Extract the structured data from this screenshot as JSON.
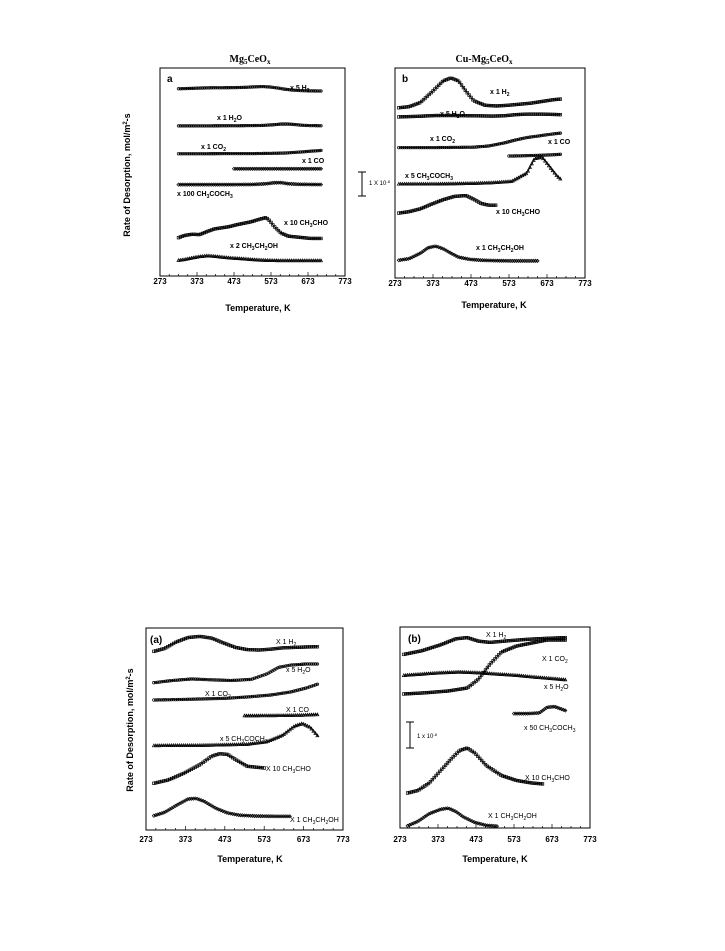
{
  "chart_data": [
    {
      "id": "mg5ceox",
      "type": "line",
      "title": "Mg5CeOx",
      "panel_label": "a",
      "xlabel": "Temperature, K",
      "ylabel": "Rate of Desorption, mol/m²-s",
      "xlim": [
        273,
        773
      ],
      "xticks": [
        "273",
        "373",
        "473",
        "573",
        "673",
        "773"
      ],
      "scale_bar": "1 X 10⁻⁸",
      "series": [
        {
          "name": "x 5 H₂",
          "x": [
            323,
            350,
            380,
            410,
            440,
            470,
            500,
            530,
            550,
            570,
            590,
            610,
            630,
            650,
            680,
            710
          ],
          "y": [
            0.23,
            0.25,
            0.28,
            0.3,
            0.305,
            0.31,
            0.33,
            0.37,
            0.385,
            0.36,
            0.29,
            0.2,
            0.14,
            0.1,
            0.08,
            0.07
          ]
        },
        {
          "name": "x 1 H₂O",
          "x": [
            323,
            373,
            423,
            473,
            523,
            550,
            580,
            600,
            620,
            640,
            660,
            680,
            710
          ],
          "y": [
            0.15,
            0.15,
            0.155,
            0.16,
            0.17,
            0.185,
            0.23,
            0.28,
            0.28,
            0.24,
            0.19,
            0.17,
            0.16
          ]
        },
        {
          "name": "x 1 CO₂",
          "x": [
            323,
            373,
            423,
            473,
            523,
            573,
            610,
            640,
            660,
            680,
            700,
            710
          ],
          "y": [
            0.16,
            0.16,
            0.165,
            0.17,
            0.17,
            0.19,
            0.21,
            0.26,
            0.3,
            0.34,
            0.38,
            0.4
          ]
        },
        {
          "name": "x 1 CO",
          "x": [
            473,
            520,
            570,
            620,
            670,
            710
          ],
          "y": [
            0.12,
            0.12,
            0.12,
            0.12,
            0.12,
            0.12
          ]
        },
        {
          "name": "x 100 CH₃COCH₃",
          "x": [
            323,
            373,
            423,
            473,
            523,
            560,
            580,
            600,
            620,
            650,
            680,
            710
          ],
          "y": [
            0.1,
            0.1,
            0.1,
            0.1,
            0.11,
            0.16,
            0.23,
            0.24,
            0.16,
            0.12,
            0.11,
            0.1
          ]
        },
        {
          "name": "x 10 CH₃CHO",
          "x": [
            323,
            340,
            360,
            380,
            400,
            420,
            440,
            460,
            480,
            500,
            520,
            540,
            560,
            570,
            580,
            600,
            620,
            650,
            680,
            710
          ],
          "y": [
            0.14,
            0.2,
            0.23,
            0.22,
            0.3,
            0.37,
            0.4,
            0.43,
            0.48,
            0.52,
            0.56,
            0.62,
            0.67,
            0.58,
            0.45,
            0.26,
            0.18,
            0.15,
            0.12,
            0.12
          ]
        },
        {
          "name": "x 2 CH₃CH₂OH",
          "x": [
            323,
            340,
            360,
            380,
            400,
            420,
            440,
            460,
            480,
            500,
            520,
            540,
            560,
            600,
            650,
            710
          ],
          "y": [
            0.1,
            0.15,
            0.25,
            0.33,
            0.38,
            0.35,
            0.3,
            0.25,
            0.22,
            0.19,
            0.15,
            0.12,
            0.1,
            0.08,
            0.08,
            0.08
          ]
        }
      ]
    },
    {
      "id": "cu-mg5ceox",
      "type": "line",
      "title": "Cu-Mg5CeOx",
      "panel_label": "b",
      "xlabel": "Temperature, K",
      "ylabel": "",
      "xlim": [
        273,
        773
      ],
      "xticks": [
        "273",
        "373",
        "473",
        "573",
        "673",
        "773"
      ],
      "series": [
        {
          "name": "x 1 H₂",
          "x": [
            283,
            310,
            340,
            370,
            400,
            420,
            440,
            460,
            480,
            510,
            540,
            570,
            600,
            630,
            660,
            690,
            710
          ],
          "y": [
            0.15,
            0.18,
            0.3,
            0.6,
            0.92,
            1.0,
            0.92,
            0.62,
            0.35,
            0.22,
            0.2,
            0.22,
            0.25,
            0.28,
            0.33,
            0.38,
            0.4
          ]
        },
        {
          "name": "x 5 H₂O",
          "x": [
            283,
            330,
            380,
            430,
            480,
            530,
            560,
            590,
            620,
            660,
            710
          ],
          "y": [
            0.22,
            0.26,
            0.32,
            0.32,
            0.3,
            0.28,
            0.3,
            0.38,
            0.42,
            0.42,
            0.38
          ]
        },
        {
          "name": "x 1 CO₂",
          "x": [
            283,
            330,
            380,
            430,
            480,
            520,
            560,
            590,
            620,
            650,
            680,
            710
          ],
          "y": [
            0.12,
            0.12,
            0.12,
            0.13,
            0.14,
            0.2,
            0.35,
            0.5,
            0.62,
            0.7,
            0.78,
            0.85
          ]
        },
        {
          "name": "x 1 CO",
          "x": [
            573,
            600,
            630,
            660,
            690,
            710
          ],
          "y": [
            0.12,
            0.14,
            0.18,
            0.22,
            0.28,
            0.34
          ]
        },
        {
          "name": "x 5 CH₃COCH₃",
          "x": [
            283,
            330,
            380,
            430,
            480,
            530,
            580,
            620,
            640,
            660,
            680,
            700,
            710
          ],
          "y": [
            0.06,
            0.06,
            0.06,
            0.07,
            0.08,
            0.1,
            0.14,
            0.4,
            0.85,
            0.9,
            0.6,
            0.3,
            0.2
          ]
        },
        {
          "name": "x 10 CH₃CHO",
          "x": [
            283,
            310,
            340,
            370,
            400,
            430,
            460,
            480,
            500,
            520,
            540
          ],
          "y": [
            0.12,
            0.18,
            0.3,
            0.5,
            0.68,
            0.82,
            0.85,
            0.7,
            0.52,
            0.45,
            0.45
          ]
        },
        {
          "name": "x 1 CH₃CH₂OH",
          "x": [
            283,
            310,
            340,
            360,
            380,
            400,
            420,
            440,
            470,
            500,
            540,
            580,
            620,
            650
          ],
          "y": [
            0.08,
            0.15,
            0.4,
            0.65,
            0.72,
            0.6,
            0.4,
            0.22,
            0.12,
            0.08,
            0.06,
            0.05,
            0.05,
            0.05
          ]
        }
      ]
    },
    {
      "id": "second-a",
      "type": "line",
      "title": "",
      "panel_label": "(a)",
      "xlabel": "Temperature, K",
      "ylabel": "Rate of Desorption, mol/m²-s",
      "xlim": [
        273,
        773
      ],
      "xticks": [
        "273",
        "373",
        "473",
        "573",
        "673",
        "773"
      ],
      "series": [
        {
          "name": "X 1  H₂",
          "x": [
            293,
            320,
            350,
            380,
            410,
            440,
            470,
            500,
            530,
            560,
            590,
            620,
            650,
            680,
            710
          ],
          "y": [
            0.12,
            0.25,
            0.55,
            0.75,
            0.8,
            0.72,
            0.5,
            0.3,
            0.2,
            0.18,
            0.22,
            0.28,
            0.3,
            0.32,
            0.33
          ]
        },
        {
          "name": "x 5 H₂O",
          "x": [
            293,
            340,
            390,
            440,
            490,
            540,
            580,
            610,
            640,
            680,
            710
          ],
          "y": [
            0.15,
            0.25,
            0.32,
            0.28,
            0.25,
            0.3,
            0.55,
            0.85,
            0.95,
            1.0,
            1.0
          ]
        },
        {
          "name": "X 1 CO₂",
          "x": [
            293,
            350,
            410,
            470,
            530,
            590,
            640,
            680,
            710
          ],
          "y": [
            0.1,
            0.12,
            0.15,
            0.18,
            0.25,
            0.35,
            0.5,
            0.7,
            0.9
          ]
        },
        {
          "name": "X 1 CO",
          "x": [
            523,
            570,
            620,
            670,
            710
          ],
          "y": [
            0.15,
            0.16,
            0.18,
            0.22,
            0.3
          ]
        },
        {
          "name": "x 5 CH₃COCH₃",
          "x": [
            293,
            350,
            410,
            470,
            530,
            580,
            620,
            650,
            670,
            690,
            710
          ],
          "y": [
            0.05,
            0.06,
            0.06,
            0.08,
            0.1,
            0.2,
            0.45,
            0.8,
            0.9,
            0.75,
            0.4
          ]
        },
        {
          "name": "X 10 CH₃CHO",
          "x": [
            293,
            330,
            370,
            410,
            440,
            460,
            480,
            500,
            530,
            573
          ],
          "y": [
            0.05,
            0.15,
            0.35,
            0.6,
            0.85,
            0.92,
            0.9,
            0.75,
            0.55,
            0.5
          ]
        },
        {
          "name": "X 1  CH₃CH₂OH",
          "x": [
            293,
            320,
            350,
            380,
            400,
            420,
            450,
            480,
            510,
            550,
            600,
            640
          ],
          "y": [
            0.08,
            0.2,
            0.45,
            0.68,
            0.7,
            0.6,
            0.35,
            0.18,
            0.1,
            0.07,
            0.06,
            0.06
          ]
        }
      ]
    },
    {
      "id": "second-b",
      "type": "line",
      "title": "",
      "panel_label": "(b)",
      "xlabel": "Temperature, K",
      "ylabel": "",
      "xlim": [
        273,
        773
      ],
      "xticks": [
        "273",
        "373",
        "473",
        "573",
        "673",
        "773"
      ],
      "scale_bar": "1 x 10⁻⁸",
      "series": [
        {
          "name": "X 1  H₂",
          "x": [
            283,
            330,
            380,
            420,
            450,
            480,
            510,
            560,
            610,
            660,
            710
          ],
          "y": [
            0.15,
            0.3,
            0.55,
            0.8,
            0.85,
            0.7,
            0.65,
            0.72,
            0.78,
            0.82,
            0.85
          ]
        },
        {
          "name": "X 1 CO₂",
          "x": [
            283,
            340,
            400,
            450,
            480,
            510,
            540,
            580,
            620,
            660,
            710
          ],
          "y": [
            0.1,
            0.12,
            0.15,
            0.2,
            0.35,
            0.6,
            0.8,
            0.9,
            0.95,
            1.0,
            1.0
          ]
        },
        {
          "name": "x 5 H₂O",
          "x": [
            283,
            330,
            380,
            430,
            480,
            530,
            580,
            630,
            680,
            710
          ],
          "y": [
            0.25,
            0.3,
            0.35,
            0.38,
            0.35,
            0.3,
            0.25,
            0.18,
            0.12,
            0.08
          ]
        },
        {
          "name": "x 50 CH₃COCH₃",
          "x": [
            573,
            610,
            640,
            660,
            680,
            700,
            710
          ],
          "y": [
            0.1,
            0.1,
            0.15,
            0.55,
            0.6,
            0.4,
            0.3
          ]
        },
        {
          "name": "X 10 CH₃CHO",
          "x": [
            293,
            320,
            350,
            380,
            410,
            430,
            450,
            470,
            500,
            540,
            580,
            620,
            650
          ],
          "y": [
            0.1,
            0.15,
            0.3,
            0.55,
            0.8,
            0.95,
            1.0,
            0.9,
            0.65,
            0.45,
            0.35,
            0.3,
            0.28
          ]
        },
        {
          "name": "X 1  CH₃CH₂OH",
          "x": [
            293,
            320,
            350,
            380,
            400,
            420,
            440,
            470,
            500,
            530
          ],
          "y": [
            0.1,
            0.3,
            0.65,
            0.85,
            0.9,
            0.75,
            0.5,
            0.25,
            0.12,
            0.08
          ]
        }
      ]
    }
  ]
}
